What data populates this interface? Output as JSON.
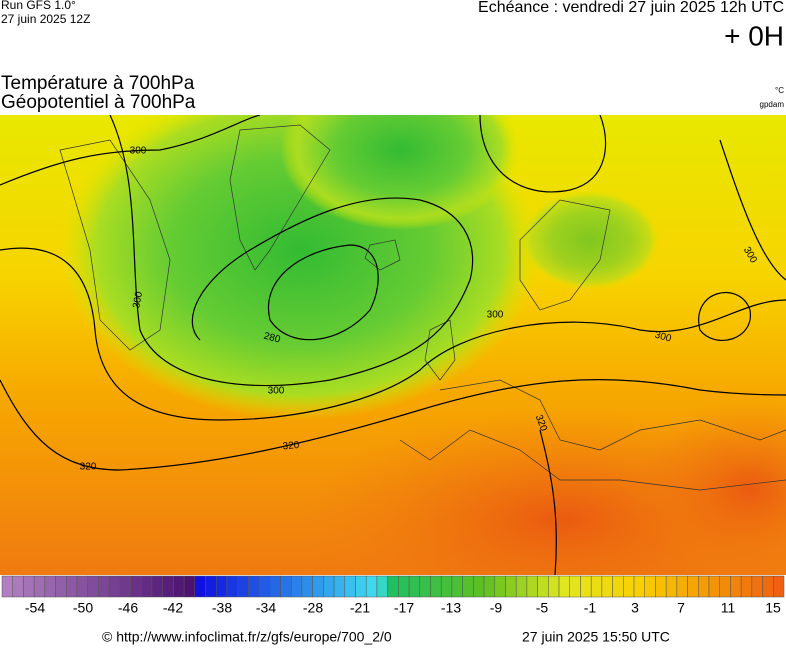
{
  "header": {
    "run": "Run GFS 1.0°",
    "run_date": "27 juin 2025 12Z",
    "valid_time": "Echéance : vendredi 27 juin 2025 12h UTC",
    "lead": "+ 0H"
  },
  "titles": {
    "temperature": "Température à 700hPa",
    "geopotential": "Géopotentiel à 700hPa",
    "temperature_unit": "°C",
    "geopotential_unit": "gpdam"
  },
  "contour_labels": [
    300,
    300,
    280,
    300,
    320,
    320,
    300,
    300,
    300,
    320
  ],
  "colorbar_ticks": [
    -54,
    -50,
    -46,
    -42,
    -38,
    -34,
    -28,
    -21,
    -17,
    -13,
    -9,
    -5,
    -1,
    3,
    7,
    11,
    15
  ],
  "footer": {
    "source": "© http://www.infoclimat.fr/z/gfs/europe/700_2/0",
    "generated": "27 juin 2025 15:50 UTC"
  }
}
